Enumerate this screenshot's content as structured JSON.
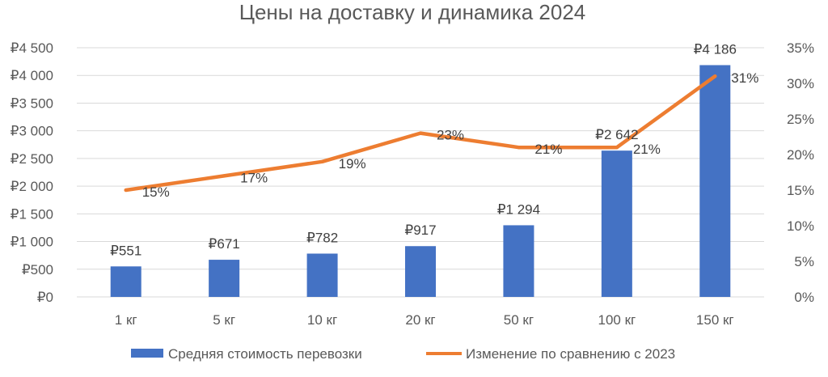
{
  "chart_data": {
    "type": "bar",
    "title": "Цены на доставку и динамика 2024",
    "categories": [
      "1 кг",
      "5 кг",
      "10 кг",
      "20 кг",
      "50 кг",
      "100 кг",
      "150 кг"
    ],
    "series": [
      {
        "name": "Средняя стоимость перевозки",
        "type": "bar",
        "axis": "left",
        "color": "#4472c4",
        "values": [
          551,
          671,
          782,
          917,
          1294,
          2642,
          4186
        ],
        "labels": [
          "₽551",
          "₽671",
          "₽782",
          "₽917",
          "₽1 294",
          "₽2 642",
          "₽4 186"
        ]
      },
      {
        "name": "Изменение по сравнению с 2023",
        "type": "line",
        "axis": "right",
        "color": "#ed7d31",
        "values": [
          0.15,
          0.17,
          0.19,
          0.23,
          0.21,
          0.21,
          0.31
        ],
        "labels": [
          "15%",
          "17%",
          "19%",
          "23%",
          "21%",
          "21%",
          "31%"
        ]
      }
    ],
    "y_left": {
      "ylim": [
        0,
        4500
      ],
      "ticks": [
        0,
        500,
        1000,
        1500,
        2000,
        2500,
        3000,
        3500,
        4000,
        4500
      ],
      "tick_labels": [
        "₽0",
        "₽500",
        "₽1 000",
        "₽1 500",
        "₽2 000",
        "₽2 500",
        "₽3 000",
        "₽3 500",
        "₽4 000",
        "₽4 500"
      ]
    },
    "y_right": {
      "ylim": [
        0,
        0.35
      ],
      "ticks": [
        0,
        0.05,
        0.1,
        0.15,
        0.2,
        0.25,
        0.3,
        0.35
      ],
      "tick_labels": [
        "0%",
        "5%",
        "10%",
        "15%",
        "20%",
        "25%",
        "30%",
        "35%"
      ]
    },
    "grid": true,
    "legend": "bottom"
  }
}
